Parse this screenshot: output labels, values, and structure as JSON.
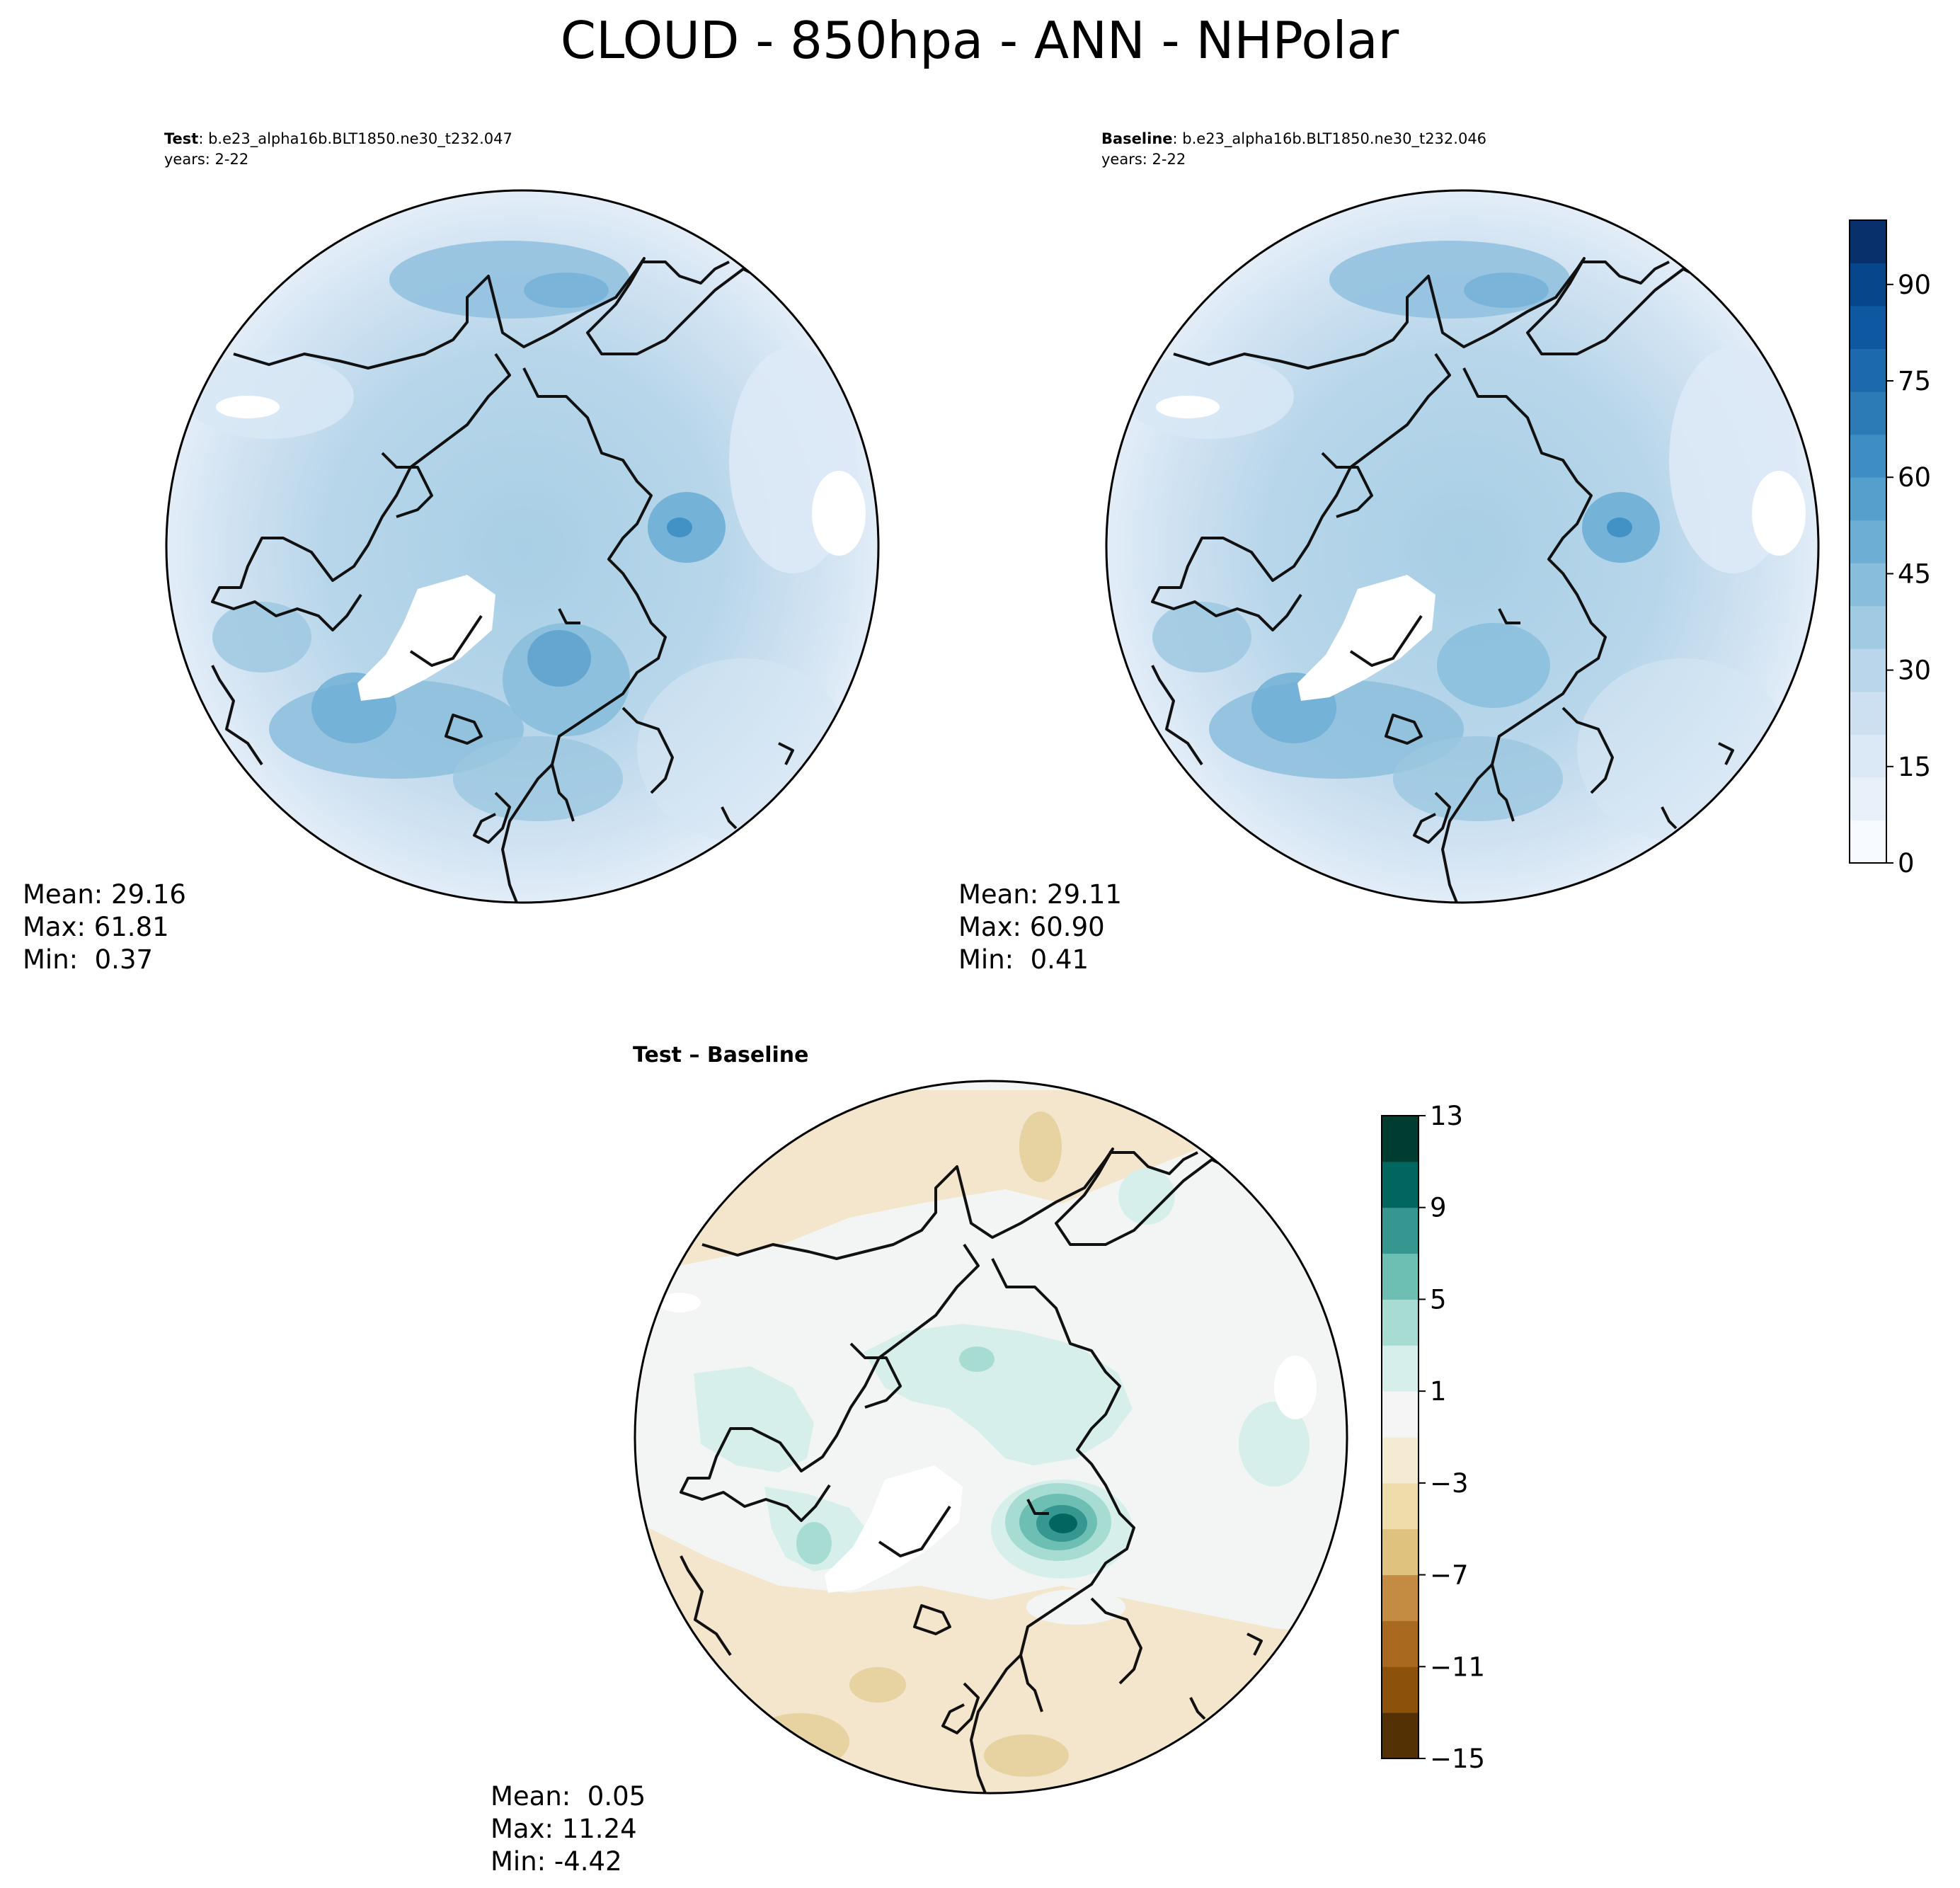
{
  "title": "CLOUD - 850hpa - ANN - NHPolar",
  "panels": [
    {
      "id": "test",
      "header_bold": "Test",
      "header_rest": ": b.e23_alpha16b.BLT1850.ne30_t232.047",
      "header_line2": "years: 2-22",
      "stats": {
        "mean": "Mean: 29.16",
        "max": "Max: 61.81",
        "min": "Min:  0.37"
      }
    },
    {
      "id": "baseline",
      "header_bold": "Baseline",
      "header_rest": ": b.e23_alpha16b.BLT1850.ne30_t232.046",
      "header_line2": "years: 2-22",
      "stats": {
        "mean": "Mean: 29.11",
        "max": "Max: 60.90",
        "min": "Min:  0.41"
      }
    },
    {
      "id": "diff",
      "header_bold": "Test – Baseline",
      "stats": {
        "mean": "Mean:  0.05",
        "max": "Max: 11.24",
        "min": "Min: -4.42"
      }
    }
  ],
  "colorbar_main": {
    "colormap": "Blues",
    "range": [
      0,
      100
    ],
    "ticks": [
      "0",
      "15",
      "30",
      "45",
      "60",
      "75",
      "90"
    ],
    "colors": [
      "#f7fbff",
      "#e8f1fa",
      "#dbe9f6",
      "#cde0f1",
      "#bad6eb",
      "#a1cbe2",
      "#88bedc",
      "#6daed5",
      "#559fcd",
      "#3e8ec4",
      "#2c7bb7",
      "#1c69ad",
      "#0e58a2",
      "#08468b",
      "#08306b"
    ]
  },
  "colorbar_diff": {
    "colormap": "BrBG",
    "range": [
      -15,
      13
    ],
    "ticks": [
      "13",
      "9",
      "5",
      "1",
      "−3",
      "−7",
      "−11",
      "−15"
    ],
    "colors": [
      "#543005",
      "#8c510a",
      "#a96a1f",
      "#c48c42",
      "#dfc27d",
      "#eedcaa",
      "#f5ebd3",
      "#f5f5f5",
      "#d7efeb",
      "#a7dcd3",
      "#6dbfb4",
      "#35978f",
      "#01665e",
      "#003c30"
    ]
  },
  "map_colors": {
    "ocean_light": "#cde0f1",
    "ocean_mid": "#a6cde4",
    "ocean_dark": "#6daed5",
    "diff_neutral": "#f3f5f4",
    "diff_pos": "#d7efeb",
    "diff_pos_strong": "#01665e",
    "diff_neg": "#f3e6cc",
    "diff_neg_strong": "#e7d3a2",
    "missing": "#ffffff",
    "coast": "#111111"
  }
}
